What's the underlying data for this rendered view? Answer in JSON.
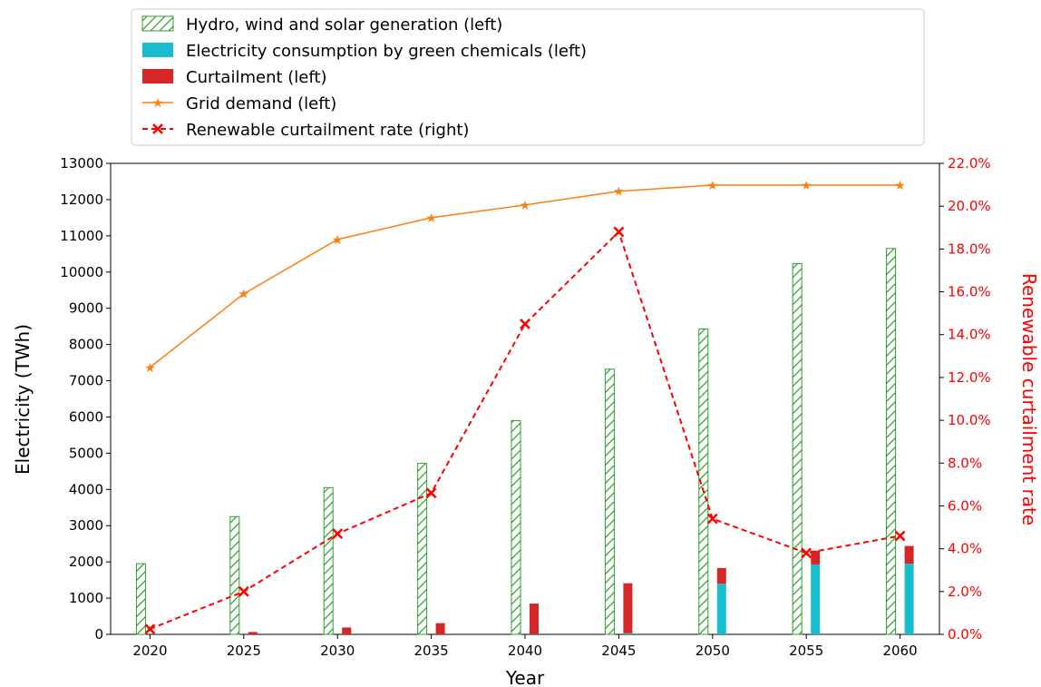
{
  "chart_data": {
    "type": "bar",
    "x": [
      2020,
      2025,
      2030,
      2035,
      2040,
      2045,
      2050,
      2055,
      2060
    ],
    "xlabel": "Year",
    "ylabel": "Electricity (TWh)",
    "ylabel_right": "Renewable curtailment rate",
    "ylim": [
      0,
      13000
    ],
    "ylim_right": [
      0,
      22
    ],
    "yticks": [
      0,
      1000,
      2000,
      3000,
      4000,
      5000,
      6000,
      7000,
      8000,
      9000,
      10000,
      11000,
      12000,
      13000
    ],
    "yticks_right": [
      "0.0%",
      "2.0%",
      "4.0%",
      "6.0%",
      "8.0%",
      "10.0%",
      "12.0%",
      "14.0%",
      "16.0%",
      "18.0%",
      "20.0%",
      "22.0%"
    ],
    "legend_position": "top",
    "grid": false,
    "series": [
      {
        "name": "Hydro, wind and solar generation (left)",
        "type": "bar",
        "axis": "left",
        "style": "hatched",
        "color": "#2ca02c",
        "values": [
          1950,
          3250,
          4050,
          4720,
          5900,
          7320,
          8430,
          10230,
          10650
        ]
      },
      {
        "name": "Electricity consumption by green chemicals (left)",
        "type": "bar",
        "axis": "left",
        "color": "#17becf",
        "values": [
          0,
          0,
          0,
          0,
          0,
          30,
          1400,
          1930,
          1950
        ]
      },
      {
        "name": "Curtailment (left)",
        "type": "bar",
        "axis": "left",
        "stacked_on": "Electricity consumption by green chemicals (left)",
        "color": "#d62728",
        "values": [
          5,
          65,
          190,
          310,
          850,
          1380,
          430,
          380,
          490
        ]
      },
      {
        "name": "Grid demand (left)",
        "type": "line",
        "axis": "left",
        "marker": "star",
        "color": "#ff7f0e",
        "values": [
          7370,
          9400,
          10900,
          11500,
          11850,
          12230,
          12400,
          12400,
          12400
        ]
      },
      {
        "name": "Renewable curtailment rate (right)",
        "type": "line",
        "axis": "right",
        "marker": "x",
        "linestyle": "dashed",
        "color": "#ff0000",
        "values": [
          0.25,
          2.0,
          4.7,
          6.6,
          14.5,
          18.8,
          5.4,
          3.8,
          4.6
        ]
      }
    ]
  }
}
